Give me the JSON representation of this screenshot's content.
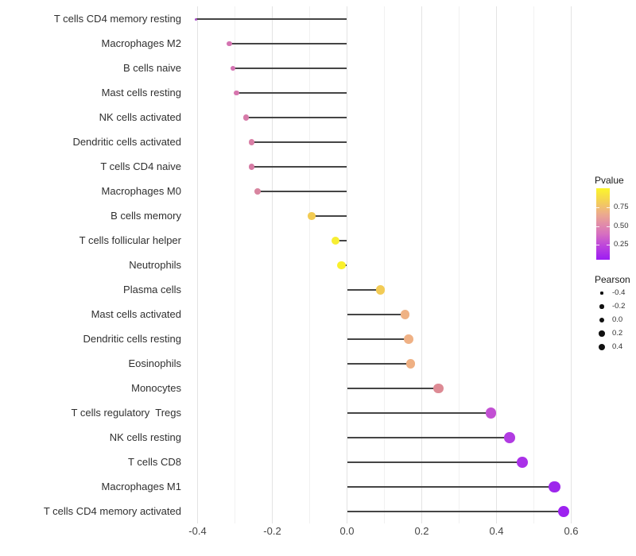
{
  "chart_data": {
    "type": "scatter",
    "variant": "lollipop",
    "orientation": "horizontal",
    "title": "",
    "xlabel": "",
    "ylabel": "",
    "grid": "vertical major and minor gridlines, no axis lines, white background",
    "baseline_x": 0,
    "xlim": [
      -0.45,
      0.65
    ],
    "x_tick_labels": [
      "-0.4",
      "-0.2",
      "0.0",
      "0.2",
      "0.4",
      "0.6"
    ],
    "x_tick_values": [
      -0.4,
      -0.2,
      0.0,
      0.2,
      0.4,
      0.6
    ],
    "x_minor_values": [
      -0.3,
      -0.1,
      0.1,
      0.3,
      0.5
    ],
    "categories": [
      "T cells CD4 memory resting",
      "Macrophages M2",
      "B cells naive",
      "Mast cells resting",
      "NK cells activated",
      "Dendritic cells activated",
      "T cells CD4 naive",
      "Macrophages M0",
      "B cells memory",
      "T cells follicular helper",
      "Neutrophils",
      "Plasma cells",
      "Mast cells activated",
      "Dendritic cells resting",
      "Eosinophils",
      "Monocytes",
      "T cells regulatory  Tregs",
      "NK cells resting",
      "T cells CD8",
      "Macrophages M1",
      "T cells CD4 memory activated"
    ],
    "series": [
      {
        "name": "Pearson",
        "values": [
          -0.405,
          -0.315,
          -0.305,
          -0.295,
          -0.27,
          -0.255,
          -0.255,
          -0.24,
          -0.095,
          -0.03,
          -0.015,
          0.09,
          0.155,
          0.165,
          0.17,
          0.245,
          0.385,
          0.435,
          0.47,
          0.555,
          0.58
        ]
      }
    ],
    "point_colors": [
      "#A94FC6",
      "#D473B1",
      "#D471B1",
      "#D775AE",
      "#D77BA9",
      "#D97FA6",
      "#D67BA4",
      "#D885A0",
      "#F2CB52",
      "#F7EE33",
      "#FAF02B",
      "#F2CB55",
      "#EFB284",
      "#EFB185",
      "#EFB083",
      "#DD8A94",
      "#C250D3",
      "#B13BE2",
      "#AA31E8",
      "#9D27EC",
      "#9D22F0"
    ],
    "legends": {
      "pvalue": {
        "title": "Pvalue",
        "tick_labels": [
          "0.75",
          "0.50",
          "0.25"
        ],
        "gradient_stops": [
          {
            "pos": 0.0,
            "color": "#FCF62B"
          },
          {
            "pos": 0.18,
            "color": "#F4D155"
          },
          {
            "pos": 0.36,
            "color": "#ECAB8D"
          },
          {
            "pos": 0.5,
            "color": "#E28DA8"
          },
          {
            "pos": 0.64,
            "color": "#D66FC0"
          },
          {
            "pos": 0.8,
            "color": "#BE46DB"
          },
          {
            "pos": 1.0,
            "color": "#9C1CF4"
          }
        ]
      },
      "pearson": {
        "title": "Pearson",
        "entries": [
          {
            "label": "-0.4",
            "diameter": 3.2
          },
          {
            "label": "-0.2",
            "diameter": 5.2
          },
          {
            "label": "0.0",
            "diameter": 6.4
          },
          {
            "label": "0.2",
            "diameter": 7.4
          },
          {
            "label": "0.4",
            "diameter": 8.6
          }
        ]
      }
    }
  }
}
